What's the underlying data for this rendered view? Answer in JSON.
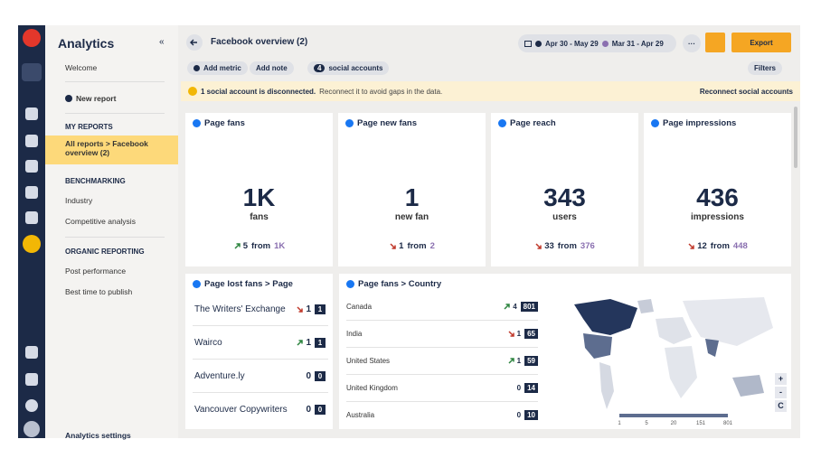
{
  "nav": {
    "title": "Analytics",
    "collapse": "«",
    "welcome": "Welcome",
    "new_report": "New report",
    "my_reports": "MY REPORTS",
    "current_report": "All reports > Facebook overview (2)",
    "benchmarking": "BENCHMARKING",
    "industry": "Industry",
    "competitive": "Competitive analysis",
    "organic": "ORGANIC REPORTING",
    "post_performance": "Post performance",
    "best_time": "Best time to publish",
    "settings": "Analytics settings"
  },
  "header": {
    "title": "Facebook overview (2)",
    "date_range": "Apr 30 - May 29",
    "compare_range": "Mar 31 - Apr 29",
    "more": "···",
    "export": "Export"
  },
  "toolbar": {
    "add_metric": "Add metric",
    "add_note": "Add note",
    "accounts_count": "4",
    "accounts": "social accounts",
    "filters": "Filters"
  },
  "alert": {
    "bold": "1 social account is disconnected.",
    "text": "Reconnect it to avoid gaps in the data.",
    "link": "Reconnect social accounts"
  },
  "cards": [
    {
      "title": "Page fans",
      "value": "1K",
      "unit": "fans",
      "direction": "up",
      "change": "5",
      "from_text": "from",
      "from": "1K"
    },
    {
      "title": "Page new fans",
      "value": "1",
      "unit": "new fan",
      "direction": "down",
      "change": "1",
      "from_text": "from",
      "from": "2"
    },
    {
      "title": "Page reach",
      "value": "343",
      "unit": "users",
      "direction": "down",
      "change": "33",
      "from_text": "from",
      "from": "376"
    },
    {
      "title": "Page impressions",
      "value": "436",
      "unit": "impressions",
      "direction": "down",
      "change": "12",
      "from_text": "from",
      "from": "448"
    }
  ],
  "lost_fans": {
    "title": "Page lost fans > Page",
    "rows": [
      {
        "name": "The Writers' Exchange",
        "direction": "down",
        "change": "1",
        "value": "1"
      },
      {
        "name": "Wairco",
        "direction": "up",
        "change": "1",
        "value": "1"
      },
      {
        "name": "Adventure.ly",
        "change": "0",
        "value": "0"
      },
      {
        "name": "Vancouver Copywriters",
        "change": "0",
        "value": "0"
      }
    ]
  },
  "countries": {
    "title": "Page fans > Country",
    "rows": [
      {
        "name": "Canada",
        "direction": "up",
        "change": "4",
        "value": "801"
      },
      {
        "name": "India",
        "direction": "down",
        "change": "1",
        "value": "65"
      },
      {
        "name": "United States",
        "direction": "up",
        "change": "1",
        "value": "59"
      },
      {
        "name": "United Kingdom",
        "change": "0",
        "value": "14"
      },
      {
        "name": "Australia",
        "change": "0",
        "value": "10"
      }
    ],
    "legend": [
      "1",
      "5",
      "20",
      "151",
      "801"
    ],
    "controls": [
      "+",
      "-",
      "C"
    ]
  }
}
